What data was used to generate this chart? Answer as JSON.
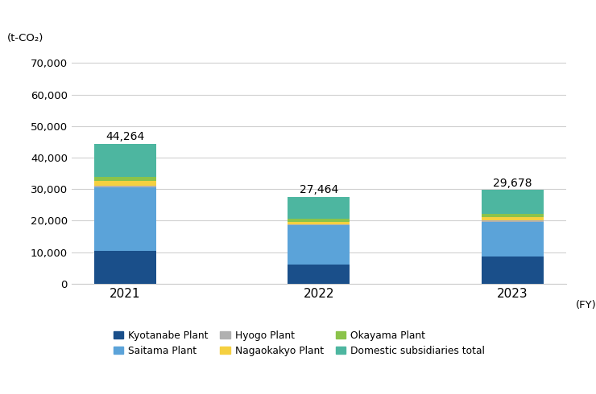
{
  "years": [
    "2021",
    "2022",
    "2023"
  ],
  "totals": [
    44264,
    27464,
    29678
  ],
  "segments": {
    "Kyotanabe Plant": [
      10500,
      6000,
      8700
    ],
    "Saitama Plant": [
      20000,
      12500,
      10800
    ],
    "Hyogo Plant": [
      500,
      350,
      500
    ],
    "Nagaokakyo Plant": [
      1500,
      800,
      1200
    ],
    "Okayama Plant": [
      1500,
      850,
      900
    ],
    "Domestic subsidiaries total": [
      10264,
      6964,
      7578
    ]
  },
  "colors": {
    "Kyotanabe Plant": "#1a4f8a",
    "Saitama Plant": "#5ba3d9",
    "Hyogo Plant": "#b0b0b0",
    "Nagaokakyo Plant": "#f5d040",
    "Okayama Plant": "#8bc34a",
    "Domestic subsidiaries total": "#4db6a0"
  },
  "ylabel": "(t-CO₂)",
  "xlabel_note": "(FY)",
  "ylim": [
    0,
    75000
  ],
  "yticks": [
    0,
    10000,
    20000,
    30000,
    40000,
    50000,
    60000,
    70000
  ],
  "background_color": "#ffffff",
  "grid_color": "#d0d0d0",
  "bar_width": 0.32,
  "figsize": [
    7.4,
    4.9
  ],
  "dpi": 100
}
